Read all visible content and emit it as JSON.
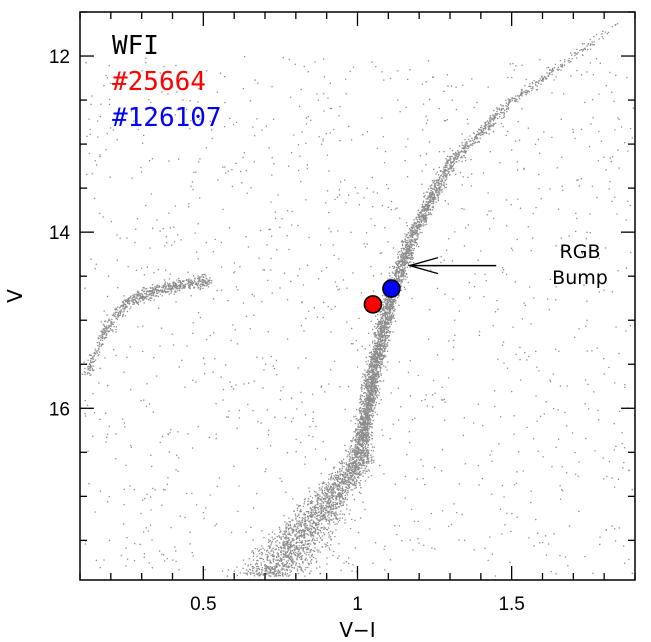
{
  "chart_data": {
    "type": "scatter",
    "title": "",
    "xlabel": "V−I",
    "ylabel": "V",
    "xlim": [
      0.1,
      1.9
    ],
    "ylim": [
      17.95,
      11.5
    ],
    "y_inverted": true,
    "grid": false,
    "x_major_ticks": [
      0.5,
      1,
      1.5
    ],
    "x_tick_labels": [
      "0.5",
      "1",
      "1.5"
    ],
    "x_minor_step": 0.1,
    "y_major_ticks": [
      12,
      14,
      16
    ],
    "y_tick_labels": [
      "12",
      "14",
      "16"
    ],
    "y_minor_step": 0.5,
    "background_points_color": "#8c8c8c",
    "background_description_components": [
      {
        "component": "main-sequence-turnoff-and-rgb",
        "x": [
          0.72,
          1.0,
          1.05,
          1.1,
          1.18,
          1.3,
          1.5,
          1.7,
          1.85
        ],
        "y": [
          17.9,
          16.6,
          15.6,
          14.8,
          14.0,
          13.2,
          12.5,
          12.0,
          11.6
        ]
      },
      {
        "component": "horizontal-branch",
        "x": [
          0.12,
          0.18,
          0.25,
          0.35,
          0.5
        ],
        "y": [
          15.6,
          15.1,
          14.8,
          14.65,
          14.55
        ]
      }
    ],
    "legend": {
      "placement": "top-left",
      "entries": [
        {
          "label": "WFI",
          "color": "#000000"
        },
        {
          "label": "#25664",
          "color": "#ff0000"
        },
        {
          "label": "#126107",
          "color": "#0000ff"
        }
      ]
    },
    "series": [
      {
        "name": "#25664",
        "color": "#ff0000",
        "x": [
          1.05
        ],
        "y": [
          14.82
        ]
      },
      {
        "name": "#126107",
        "color": "#0000ff",
        "x": [
          1.11
        ],
        "y": [
          14.64
        ]
      }
    ],
    "annotations": [
      {
        "text_lines": [
          "RGB",
          "Bump"
        ],
        "arrow_from": [
          1.45,
          14.38
        ],
        "arrow_to": [
          1.17,
          14.38
        ]
      }
    ]
  }
}
